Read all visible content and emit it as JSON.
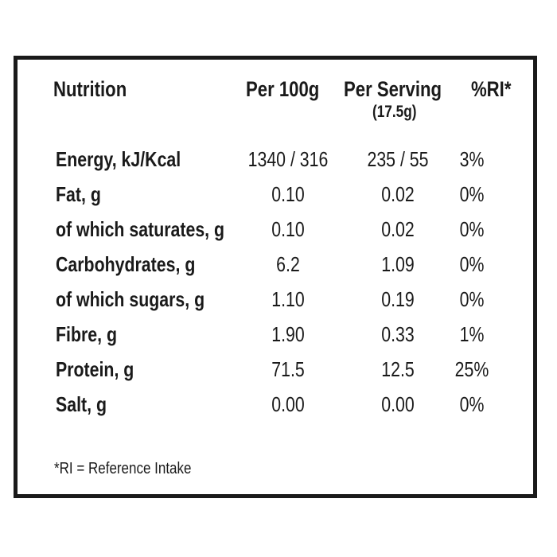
{
  "header": {
    "nutrition": "Nutrition",
    "per100": "Per 100g",
    "perServing": "Per Serving",
    "servingSize": "(17.5g)",
    "ri": "%RI*"
  },
  "rows": [
    {
      "label": "Energy, kJ/Kcal",
      "per100": "1340 / 316",
      "perServing": "235 / 55",
      "ri": "3%"
    },
    {
      "label": "Fat, g",
      "per100": "0.10",
      "perServing": "0.02",
      "ri": "0%"
    },
    {
      "label": "of which saturates, g",
      "per100": "0.10",
      "perServing": "0.02",
      "ri": "0%"
    },
    {
      "label": "Carbohydrates, g",
      "per100": "6.2",
      "perServing": "1.09",
      "ri": "0%"
    },
    {
      "label": "of which sugars, g",
      "per100": "1.10",
      "perServing": "0.19",
      "ri": "0%"
    },
    {
      "label": "Fibre, g",
      "per100": "1.90",
      "perServing": "0.33",
      "ri": "1%"
    },
    {
      "label": "Protein, g",
      "per100": "71.5",
      "perServing": "12.5",
      "ri": "25%"
    },
    {
      "label": "Salt, g",
      "per100": "0.00",
      "perServing": "0.00",
      "ri": "0%"
    }
  ],
  "footnote": "*RI = Reference Intake",
  "colors": {
    "border": "#1a1a1a",
    "text": "#1a1a1a",
    "background": "#ffffff"
  }
}
